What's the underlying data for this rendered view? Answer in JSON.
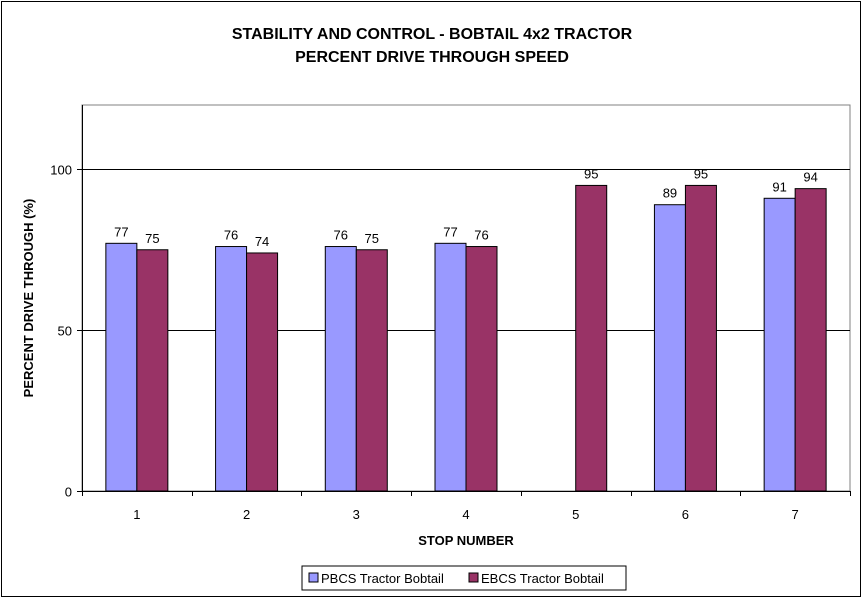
{
  "chart_data": {
    "type": "bar",
    "title": "STABILITY AND CONTROL - BOBTAIL 4x2 TRACTOR",
    "subtitle": "PERCENT DRIVE THROUGH SPEED",
    "xlabel": "STOP NUMBER",
    "ylabel": "PERCENT DRIVE THROUGH (%)",
    "categories": [
      "1",
      "2",
      "3",
      "4",
      "5",
      "6",
      "7"
    ],
    "ylim": [
      0,
      120
    ],
    "yticks": [
      0,
      50,
      100
    ],
    "grid": "horizontal major gridlines",
    "legend_position": "bottom",
    "series": [
      {
        "name": "PBCS Tractor Bobtail",
        "color": "#9999FF",
        "values": [
          77,
          76,
          76,
          77,
          null,
          89,
          91
        ]
      },
      {
        "name": "EBCS Tractor Bobtail",
        "color": "#993366",
        "values": [
          75,
          74,
          75,
          76,
          95,
          95,
          94
        ]
      }
    ]
  }
}
